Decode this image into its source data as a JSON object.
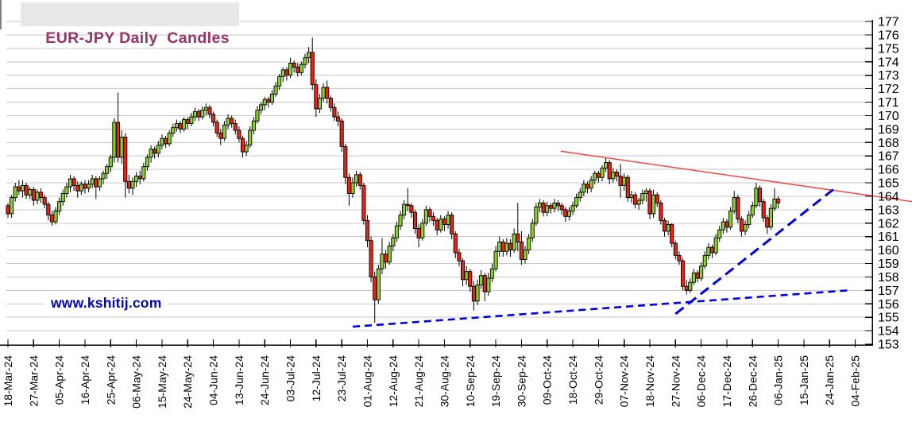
{
  "window": {
    "title": "EUR-JPY Daily  Candles"
  },
  "watermark": {
    "text": "www.kshitij.com",
    "color": "#0000d8"
  },
  "chart_data": {
    "type": "candlestick",
    "title": "EUR-JPY Daily Candles",
    "grid": "horizontal",
    "legend_position": "none",
    "y_axis": {
      "side": "right",
      "min": 153,
      "max": 177,
      "tick_step": 1
    },
    "x_axis": {
      "label_rotation_deg": -90,
      "slots_per_tick": 7,
      "total_slots": 232,
      "tick_labels": [
        "18-Mar-24",
        "27-Mar-24",
        "05-Apr-24",
        "16-Apr-24",
        "25-Apr-24",
        "06-May-24",
        "15-May-24",
        "24-May-24",
        "04-Jun-24",
        "13-Jun-24",
        "24-Jun-24",
        "03-Jul-24",
        "12-Jul-24",
        "23-Jul-24",
        "01-Aug-24",
        "12-Aug-24",
        "21-Aug-24",
        "30-Aug-24",
        "10-Sep-24",
        "19-Sep-24",
        "30-Sep-24",
        "09-Oct-24",
        "18-Oct-24",
        "29-Oct-24",
        "07-Nov-24",
        "18-Nov-24",
        "27-Nov-24",
        "06-Dec-24",
        "17-Dec-24",
        "26-Dec-24",
        "06-Jan-25",
        "15-Jan-25",
        "24-Jan-25",
        "04-Feb-25"
      ]
    },
    "colors": {
      "up": "#86d41e",
      "down": "#f0210f",
      "wick": "#000000",
      "grid": "#c9c9c9",
      "axis": "#000000",
      "title": "#993366",
      "title_bg": "#e8e8e8",
      "trend_red": "#ff3b3b",
      "trend_blue": "#0000ee"
    },
    "candles_ohlc": [
      [
        163.3,
        163.5,
        162.4,
        162.7
      ],
      [
        162.7,
        164.1,
        162.4,
        163.9
      ],
      [
        163.9,
        165.0,
        163.6,
        164.7
      ],
      [
        164.7,
        165.2,
        164.1,
        164.4
      ],
      [
        164.4,
        165.2,
        163.9,
        164.8
      ],
      [
        164.8,
        165.0,
        163.8,
        164.1
      ],
      [
        164.1,
        164.7,
        163.8,
        164.5
      ],
      [
        164.5,
        164.7,
        163.3,
        163.7
      ],
      [
        163.7,
        164.5,
        163.4,
        164.3
      ],
      [
        164.3,
        164.6,
        163.5,
        163.9
      ],
      [
        163.9,
        164.1,
        163.1,
        163.4
      ],
      [
        163.4,
        163.6,
        162.2,
        162.6
      ],
      [
        162.6,
        162.9,
        161.8,
        162.1
      ],
      [
        162.1,
        163.2,
        161.9,
        162.9
      ],
      [
        162.9,
        163.9,
        162.6,
        163.6
      ],
      [
        163.6,
        164.5,
        163.3,
        164.2
      ],
      [
        164.2,
        165.0,
        163.9,
        164.7
      ],
      [
        164.7,
        165.6,
        164.3,
        165.3
      ],
      [
        165.3,
        165.5,
        164.4,
        164.8
      ],
      [
        164.8,
        165.1,
        163.9,
        164.4
      ],
      [
        164.4,
        165.1,
        164.1,
        164.9
      ],
      [
        164.9,
        165.2,
        164.2,
        164.6
      ],
      [
        164.6,
        165.2,
        164.3,
        164.9
      ],
      [
        164.9,
        165.6,
        164.6,
        165.3
      ],
      [
        165.3,
        165.5,
        163.8,
        164.7
      ],
      [
        164.7,
        165.5,
        164.4,
        165.3
      ],
      [
        165.3,
        165.9,
        164.9,
        165.7
      ],
      [
        165.7,
        166.4,
        165.3,
        166.2
      ],
      [
        166.2,
        167.1,
        165.8,
        166.9
      ],
      [
        166.9,
        169.8,
        166.5,
        169.5
      ],
      [
        169.5,
        171.7,
        166.5,
        166.9
      ],
      [
        166.9,
        168.9,
        166.4,
        168.4
      ],
      [
        168.4,
        168.7,
        163.9,
        165.1
      ],
      [
        165.1,
        165.6,
        164.2,
        164.6
      ],
      [
        164.6,
        165.4,
        164.1,
        165.1
      ],
      [
        165.1,
        165.8,
        164.7,
        165.5
      ],
      [
        165.5,
        165.9,
        164.9,
        165.3
      ],
      [
        165.3,
        166.5,
        165.1,
        166.2
      ],
      [
        166.2,
        167.1,
        165.9,
        166.9
      ],
      [
        166.9,
        167.8,
        166.5,
        167.5
      ],
      [
        167.5,
        167.7,
        166.8,
        167.2
      ],
      [
        167.2,
        168.1,
        166.9,
        167.8
      ],
      [
        167.8,
        168.6,
        167.5,
        168.3
      ],
      [
        168.3,
        168.5,
        167.6,
        167.9
      ],
      [
        167.9,
        168.9,
        167.7,
        168.7
      ],
      [
        168.7,
        169.4,
        168.4,
        169.1
      ],
      [
        169.1,
        169.7,
        168.8,
        169.4
      ],
      [
        169.4,
        169.6,
        168.7,
        169.0
      ],
      [
        169.0,
        169.9,
        168.8,
        169.7
      ],
      [
        169.7,
        169.9,
        169.0,
        169.4
      ],
      [
        169.4,
        170.2,
        169.2,
        169.9
      ],
      [
        169.9,
        170.6,
        169.6,
        170.3
      ],
      [
        170.3,
        170.5,
        169.6,
        169.9
      ],
      [
        169.9,
        170.7,
        169.7,
        170.4
      ],
      [
        170.4,
        170.9,
        170.0,
        170.6
      ],
      [
        170.6,
        170.8,
        169.8,
        170.1
      ],
      [
        170.1,
        170.3,
        169.2,
        169.5
      ],
      [
        169.5,
        169.7,
        168.4,
        168.7
      ],
      [
        168.7,
        169.0,
        167.8,
        168.3
      ],
      [
        168.3,
        169.6,
        168.1,
        169.3
      ],
      [
        169.3,
        170.1,
        169.0,
        169.8
      ],
      [
        169.8,
        170.0,
        169.1,
        169.4
      ],
      [
        169.4,
        169.7,
        168.6,
        168.9
      ],
      [
        168.9,
        169.2,
        168.0,
        168.3
      ],
      [
        168.3,
        168.5,
        166.9,
        167.3
      ],
      [
        167.3,
        168.1,
        167.0,
        167.8
      ],
      [
        167.8,
        169.2,
        167.6,
        168.9
      ],
      [
        168.9,
        169.9,
        168.6,
        169.6
      ],
      [
        169.6,
        170.7,
        169.4,
        170.4
      ],
      [
        170.4,
        171.0,
        170.1,
        170.8
      ],
      [
        170.8,
        171.4,
        170.4,
        171.2
      ],
      [
        171.2,
        171.4,
        170.6,
        171.0
      ],
      [
        171.0,
        171.9,
        170.8,
        171.6
      ],
      [
        171.6,
        172.5,
        171.4,
        172.2
      ],
      [
        172.2,
        173.1,
        171.9,
        172.9
      ],
      [
        172.9,
        173.6,
        172.5,
        173.4
      ],
      [
        173.4,
        173.6,
        172.6,
        173.0
      ],
      [
        173.0,
        174.3,
        172.8,
        173.9
      ],
      [
        173.9,
        174.1,
        173.2,
        173.6
      ],
      [
        173.6,
        173.9,
        172.9,
        173.2
      ],
      [
        173.2,
        174.0,
        173.0,
        173.8
      ],
      [
        173.8,
        174.6,
        173.5,
        174.3
      ],
      [
        174.3,
        175.1,
        173.9,
        174.7
      ],
      [
        174.7,
        175.8,
        171.9,
        172.3
      ],
      [
        172.3,
        172.7,
        169.9,
        170.5
      ],
      [
        170.5,
        171.6,
        170.2,
        171.3
      ],
      [
        171.3,
        172.4,
        171.0,
        172.1
      ],
      [
        172.1,
        172.6,
        170.9,
        171.3
      ],
      [
        171.3,
        171.5,
        170.3,
        170.6
      ],
      [
        170.6,
        170.9,
        169.6,
        169.9
      ],
      [
        169.9,
        170.3,
        169.2,
        169.6
      ],
      [
        169.6,
        169.8,
        167.3,
        167.7
      ],
      [
        167.7,
        167.9,
        164.9,
        165.4
      ],
      [
        165.4,
        165.7,
        163.3,
        164.2
      ],
      [
        164.2,
        165.4,
        163.9,
        165.0
      ],
      [
        165.0,
        165.9,
        164.7,
        165.6
      ],
      [
        165.6,
        165.8,
        164.5,
        164.8
      ],
      [
        164.8,
        165.0,
        161.9,
        162.2
      ],
      [
        162.2,
        162.6,
        160.2,
        160.7
      ],
      [
        160.7,
        161.0,
        157.6,
        158.0
      ],
      [
        158.0,
        158.4,
        154.6,
        156.3
      ],
      [
        156.3,
        158.9,
        156.0,
        158.6
      ],
      [
        158.6,
        160.9,
        158.2,
        159.7
      ],
      [
        159.7,
        160.0,
        158.6,
        159.1
      ],
      [
        159.1,
        160.6,
        158.9,
        160.3
      ],
      [
        160.3,
        161.2,
        159.9,
        160.9
      ],
      [
        160.9,
        162.1,
        160.6,
        161.8
      ],
      [
        161.8,
        162.9,
        161.5,
        162.6
      ],
      [
        162.6,
        163.7,
        162.3,
        163.4
      ],
      [
        163.4,
        164.6,
        162.9,
        163.3
      ],
      [
        163.3,
        163.5,
        162.4,
        162.8
      ],
      [
        162.8,
        163.0,
        161.2,
        161.6
      ],
      [
        161.6,
        161.9,
        160.2,
        160.9
      ],
      [
        160.9,
        162.3,
        160.7,
        162.0
      ],
      [
        162.0,
        163.3,
        161.8,
        163.0
      ],
      [
        163.0,
        163.2,
        162.1,
        162.5
      ],
      [
        162.5,
        162.8,
        161.8,
        162.2
      ],
      [
        162.2,
        162.4,
        161.1,
        161.5
      ],
      [
        161.5,
        162.6,
        161.3,
        162.3
      ],
      [
        162.3,
        162.5,
        161.4,
        161.9
      ],
      [
        161.9,
        162.9,
        161.6,
        162.6
      ],
      [
        162.6,
        162.8,
        160.8,
        161.2
      ],
      [
        161.2,
        161.4,
        159.4,
        159.8
      ],
      [
        159.8,
        160.1,
        158.8,
        159.2
      ],
      [
        159.2,
        159.4,
        157.3,
        157.8
      ],
      [
        157.8,
        158.8,
        157.4,
        158.4
      ],
      [
        158.4,
        158.6,
        156.9,
        157.3
      ],
      [
        157.3,
        157.7,
        155.5,
        156.2
      ],
      [
        156.2,
        157.8,
        155.9,
        157.4
      ],
      [
        157.4,
        158.5,
        157.1,
        158.1
      ],
      [
        158.1,
        158.3,
        156.2,
        156.9
      ],
      [
        156.9,
        158.3,
        156.6,
        157.9
      ],
      [
        157.9,
        159.0,
        157.6,
        158.6
      ],
      [
        158.6,
        160.3,
        158.4,
        159.9
      ],
      [
        159.9,
        161.0,
        159.5,
        160.6
      ],
      [
        160.6,
        160.8,
        159.5,
        159.9
      ],
      [
        159.9,
        160.9,
        159.6,
        160.5
      ],
      [
        160.5,
        160.8,
        159.5,
        160.0
      ],
      [
        160.0,
        161.6,
        159.8,
        161.2
      ],
      [
        161.2,
        163.5,
        159.9,
        160.6
      ],
      [
        160.6,
        161.4,
        158.9,
        159.3
      ],
      [
        159.3,
        160.3,
        159.0,
        160.0
      ],
      [
        160.0,
        161.2,
        159.7,
        160.9
      ],
      [
        160.9,
        162.3,
        160.6,
        162.0
      ],
      [
        162.0,
        163.5,
        161.8,
        163.2
      ],
      [
        163.2,
        163.8,
        162.8,
        163.5
      ],
      [
        163.5,
        163.7,
        162.5,
        162.8
      ],
      [
        162.8,
        163.6,
        162.5,
        163.3
      ],
      [
        163.3,
        163.5,
        162.7,
        163.1
      ],
      [
        163.1,
        163.8,
        162.8,
        163.5
      ],
      [
        163.5,
        163.7,
        162.9,
        163.3
      ],
      [
        163.3,
        163.5,
        162.6,
        163.0
      ],
      [
        163.0,
        163.2,
        162.1,
        162.5
      ],
      [
        162.5,
        163.2,
        162.2,
        162.9
      ],
      [
        162.9,
        163.6,
        162.6,
        163.3
      ],
      [
        163.3,
        164.2,
        163.1,
        163.9
      ],
      [
        163.9,
        164.6,
        163.6,
        164.3
      ],
      [
        164.3,
        165.2,
        164.0,
        164.9
      ],
      [
        164.9,
        165.1,
        164.2,
        164.6
      ],
      [
        164.6,
        165.5,
        164.3,
        165.2
      ],
      [
        165.2,
        165.9,
        164.9,
        165.7
      ],
      [
        165.7,
        165.9,
        165.0,
        165.4
      ],
      [
        165.4,
        166.3,
        165.1,
        166.1
      ],
      [
        166.1,
        166.9,
        165.8,
        166.5
      ],
      [
        166.5,
        166.7,
        164.9,
        165.3
      ],
      [
        165.3,
        166.1,
        165.0,
        165.8
      ],
      [
        165.8,
        166.0,
        165.1,
        165.5
      ],
      [
        165.5,
        166.4,
        163.9,
        164.8
      ],
      [
        164.8,
        165.7,
        164.4,
        165.4
      ],
      [
        165.4,
        165.6,
        163.6,
        163.9
      ],
      [
        163.9,
        164.4,
        163.5,
        164.1
      ],
      [
        164.1,
        164.3,
        163.1,
        163.4
      ],
      [
        163.4,
        163.9,
        163.0,
        163.7
      ],
      [
        163.7,
        164.5,
        163.4,
        164.2
      ],
      [
        164.2,
        164.6,
        163.6,
        164.4
      ],
      [
        164.4,
        164.6,
        162.3,
        162.7
      ],
      [
        162.7,
        164.5,
        162.4,
        164.1
      ],
      [
        164.1,
        164.3,
        163.2,
        163.5
      ],
      [
        163.5,
        163.7,
        161.9,
        162.2
      ],
      [
        162.2,
        162.4,
        161.0,
        161.4
      ],
      [
        161.4,
        162.2,
        161.1,
        161.9
      ],
      [
        161.9,
        162.0,
        160.2,
        160.5
      ],
      [
        160.5,
        160.7,
        159.3,
        159.6
      ],
      [
        159.6,
        159.9,
        158.9,
        159.2
      ],
      [
        159.2,
        159.4,
        157.0,
        157.3
      ],
      [
        157.3,
        157.8,
        156.7,
        157.0
      ],
      [
        157.0,
        157.9,
        156.8,
        157.6
      ],
      [
        157.6,
        158.6,
        157.4,
        158.3
      ],
      [
        158.3,
        158.5,
        157.6,
        157.9
      ],
      [
        157.9,
        159.1,
        157.7,
        158.8
      ],
      [
        158.8,
        159.9,
        158.6,
        159.6
      ],
      [
        159.6,
        160.5,
        159.3,
        160.2
      ],
      [
        160.2,
        160.4,
        159.4,
        159.8
      ],
      [
        159.8,
        161.2,
        159.6,
        160.9
      ],
      [
        160.9,
        161.8,
        160.6,
        161.5
      ],
      [
        161.5,
        162.4,
        161.2,
        162.1
      ],
      [
        162.1,
        162.3,
        161.3,
        161.7
      ],
      [
        161.7,
        163.2,
        161.5,
        162.9
      ],
      [
        162.9,
        164.4,
        162.7,
        163.9
      ],
      [
        163.9,
        164.1,
        162.0,
        162.3
      ],
      [
        162.3,
        162.5,
        161.0,
        161.4
      ],
      [
        161.4,
        162.2,
        161.1,
        161.9
      ],
      [
        161.9,
        162.9,
        161.6,
        162.6
      ],
      [
        162.6,
        163.6,
        162.4,
        163.3
      ],
      [
        163.3,
        165.0,
        163.1,
        164.6
      ],
      [
        164.6,
        164.8,
        163.2,
        163.6
      ],
      [
        163.6,
        163.8,
        162.1,
        162.4
      ],
      [
        162.4,
        162.6,
        161.2,
        161.7
      ],
      [
        161.7,
        163.4,
        161.5,
        163.1
      ],
      [
        163.1,
        164.6,
        162.9,
        163.8
      ],
      [
        163.8,
        164.0,
        163.1,
        163.5
      ]
    ],
    "trendlines": [
      {
        "name": "descending-resistance",
        "style": "solid",
        "color": "#ff3b3b",
        "width": 1.4,
        "dash": "",
        "from": {
          "slot": 150.7,
          "value": 167.35
        },
        "to": {
          "slot": 246.5,
          "value": 163.6
        }
      },
      {
        "name": "steep-rising-support",
        "style": "dashed",
        "color": "#0000ee",
        "width": 3,
        "dash": "13 7",
        "from": {
          "slot": 182,
          "value": 155.25
        },
        "to": {
          "slot": 225,
          "value": 164.5
        }
      },
      {
        "name": "long-rising-support",
        "style": "dashed",
        "color": "#0000ee",
        "width": 2.6,
        "dash": "9 6",
        "from": {
          "slot": 94,
          "value": 154.3
        },
        "to": {
          "slot": 229,
          "value": 157.0
        }
      }
    ]
  }
}
